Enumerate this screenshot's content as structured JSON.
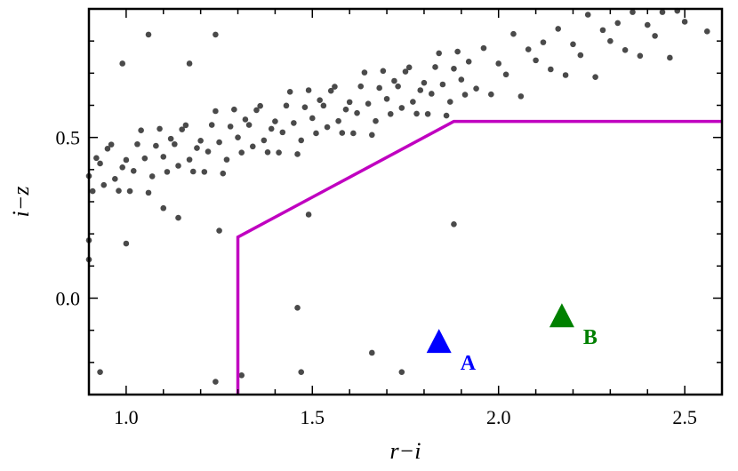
{
  "chart_data": {
    "type": "scatter",
    "title": "",
    "xlabel": "r−i",
    "ylabel": "i−z",
    "xlim": [
      0.9,
      2.6
    ],
    "ylim": [
      -0.3,
      0.9
    ],
    "xticks": [
      {
        "value": 1.0,
        "label": "1.0"
      },
      {
        "value": 1.5,
        "label": "1.5"
      },
      {
        "value": 2.0,
        "label": "2.0"
      },
      {
        "value": 2.5,
        "label": "2.5"
      }
    ],
    "yticks": [
      {
        "value": 0.0,
        "label": "0.0"
      },
      {
        "value": 0.5,
        "label": "0.5"
      }
    ],
    "minor_tick_step": 0.1,
    "grid": false,
    "point_color": "#4a4a4a",
    "points": [
      [
        0.9,
        0.38
      ],
      [
        0.92,
        0.436
      ],
      [
        0.94,
        0.352
      ],
      [
        0.96,
        0.478
      ],
      [
        0.98,
        0.334
      ],
      [
        1.0,
        0.43
      ],
      [
        1.02,
        0.396
      ],
      [
        1.04,
        0.522
      ],
      [
        1.06,
        0.328
      ],
      [
        1.08,
        0.474
      ],
      [
        1.1,
        0.44
      ],
      [
        1.12,
        0.496
      ],
      [
        1.14,
        0.412
      ],
      [
        1.16,
        0.538
      ],
      [
        1.18,
        0.394
      ],
      [
        1.2,
        0.49
      ],
      [
        1.22,
        0.456
      ],
      [
        1.24,
        0.582
      ],
      [
        1.26,
        0.388
      ],
      [
        1.28,
        0.534
      ],
      [
        1.3,
        0.5
      ],
      [
        1.32,
        0.556
      ],
      [
        1.34,
        0.472
      ],
      [
        1.36,
        0.598
      ],
      [
        1.38,
        0.454
      ],
      [
        1.4,
        0.55
      ],
      [
        1.42,
        0.516
      ],
      [
        1.44,
        0.642
      ],
      [
        1.46,
        0.448
      ],
      [
        1.48,
        0.594
      ],
      [
        1.5,
        0.56
      ],
      [
        1.52,
        0.616
      ],
      [
        1.54,
        0.532
      ],
      [
        1.56,
        0.658
      ],
      [
        1.58,
        0.514
      ],
      [
        1.6,
        0.61
      ],
      [
        1.62,
        0.576
      ],
      [
        1.64,
        0.702
      ],
      [
        1.66,
        0.508
      ],
      [
        1.68,
        0.654
      ],
      [
        1.7,
        0.62
      ],
      [
        1.72,
        0.676
      ],
      [
        1.74,
        0.592
      ],
      [
        1.76,
        0.718
      ],
      [
        1.78,
        0.574
      ],
      [
        1.8,
        0.67
      ],
      [
        1.82,
        0.636
      ],
      [
        1.84,
        0.762
      ],
      [
        1.86,
        0.568
      ],
      [
        1.88,
        0.714
      ],
      [
        1.9,
        0.68
      ],
      [
        1.92,
        0.736
      ],
      [
        1.94,
        0.652
      ],
      [
        1.96,
        0.778
      ],
      [
        1.98,
        0.634
      ],
      [
        2.0,
        0.73
      ],
      [
        2.02,
        0.696
      ],
      [
        2.04,
        0.822
      ],
      [
        2.06,
        0.628
      ],
      [
        2.08,
        0.774
      ],
      [
        2.1,
        0.74
      ],
      [
        2.12,
        0.796
      ],
      [
        2.14,
        0.712
      ],
      [
        2.16,
        0.838
      ],
      [
        2.18,
        0.694
      ],
      [
        2.2,
        0.79
      ],
      [
        2.22,
        0.756
      ],
      [
        2.24,
        0.882
      ],
      [
        2.26,
        0.688
      ],
      [
        2.28,
        0.834
      ],
      [
        2.3,
        0.8
      ],
      [
        2.32,
        0.856
      ],
      [
        2.34,
        0.772
      ],
      [
        2.36,
        0.89
      ],
      [
        2.38,
        0.754
      ],
      [
        2.4,
        0.85
      ],
      [
        2.42,
        0.816
      ],
      [
        2.44,
        0.89
      ],
      [
        2.46,
        0.748
      ],
      [
        2.48,
        0.894
      ],
      [
        2.5,
        0.86
      ],
      [
        0.91,
        0.333
      ],
      [
        0.93,
        0.419
      ],
      [
        0.95,
        0.465
      ],
      [
        0.97,
        0.371
      ],
      [
        0.99,
        0.407
      ],
      [
        1.01,
        0.333
      ],
      [
        1.03,
        0.479
      ],
      [
        1.05,
        0.435
      ],
      [
        1.07,
        0.379
      ],
      [
        1.09,
        0.527
      ],
      [
        1.11,
        0.393
      ],
      [
        1.13,
        0.479
      ],
      [
        1.15,
        0.525
      ],
      [
        1.17,
        0.431
      ],
      [
        1.19,
        0.467
      ],
      [
        1.21,
        0.393
      ],
      [
        1.23,
        0.539
      ],
      [
        1.25,
        0.485
      ],
      [
        1.27,
        0.431
      ],
      [
        1.29,
        0.587
      ],
      [
        1.31,
        0.453
      ],
      [
        1.33,
        0.539
      ],
      [
        1.35,
        0.585
      ],
      [
        1.37,
        0.491
      ],
      [
        1.39,
        0.527
      ],
      [
        1.41,
        0.453
      ],
      [
        1.43,
        0.599
      ],
      [
        1.45,
        0.545
      ],
      [
        1.47,
        0.491
      ],
      [
        1.49,
        0.647
      ],
      [
        1.51,
        0.513
      ],
      [
        1.53,
        0.599
      ],
      [
        1.55,
        0.645
      ],
      [
        1.57,
        0.551
      ],
      [
        1.59,
        0.587
      ],
      [
        1.61,
        0.513
      ],
      [
        1.63,
        0.659
      ],
      [
        1.65,
        0.605
      ],
      [
        1.67,
        0.551
      ],
      [
        1.69,
        0.707
      ],
      [
        1.71,
        0.573
      ],
      [
        1.73,
        0.659
      ],
      [
        1.75,
        0.705
      ],
      [
        1.77,
        0.611
      ],
      [
        1.79,
        0.647
      ],
      [
        1.81,
        0.573
      ],
      [
        1.83,
        0.719
      ],
      [
        1.85,
        0.665
      ],
      [
        1.87,
        0.611
      ],
      [
        1.89,
        0.767
      ],
      [
        1.91,
        0.633
      ],
      [
        0.93,
        -0.23
      ],
      [
        1.24,
        -0.26
      ],
      [
        1.31,
        -0.24
      ],
      [
        1.46,
        -0.03
      ],
      [
        1.47,
        -0.23
      ],
      [
        1.66,
        -0.17
      ],
      [
        1.74,
        -0.23
      ],
      [
        1.88,
        0.23
      ],
      [
        1.49,
        0.26
      ],
      [
        1.0,
        0.17
      ],
      [
        0.9,
        0.18
      ],
      [
        0.9,
        0.12
      ],
      [
        1.06,
        0.82
      ],
      [
        1.24,
        0.82
      ],
      [
        1.17,
        0.73
      ],
      [
        0.99,
        0.73
      ],
      [
        1.25,
        0.21
      ],
      [
        1.1,
        0.28
      ],
      [
        2.56,
        0.83
      ],
      [
        1.14,
        0.25
      ]
    ],
    "selection_boundary": {
      "color": "#c000c0",
      "vertices": [
        [
          1.3,
          -0.3
        ],
        [
          1.3,
          0.19
        ],
        [
          1.88,
          0.55
        ],
        [
          2.6,
          0.55
        ]
      ]
    },
    "markers": [
      {
        "label": "A",
        "x": 1.84,
        "y": -0.14,
        "shape": "triangle",
        "color": "#0000ff"
      },
      {
        "label": "B",
        "x": 2.17,
        "y": -0.06,
        "shape": "triangle",
        "color": "#008000"
      }
    ]
  }
}
